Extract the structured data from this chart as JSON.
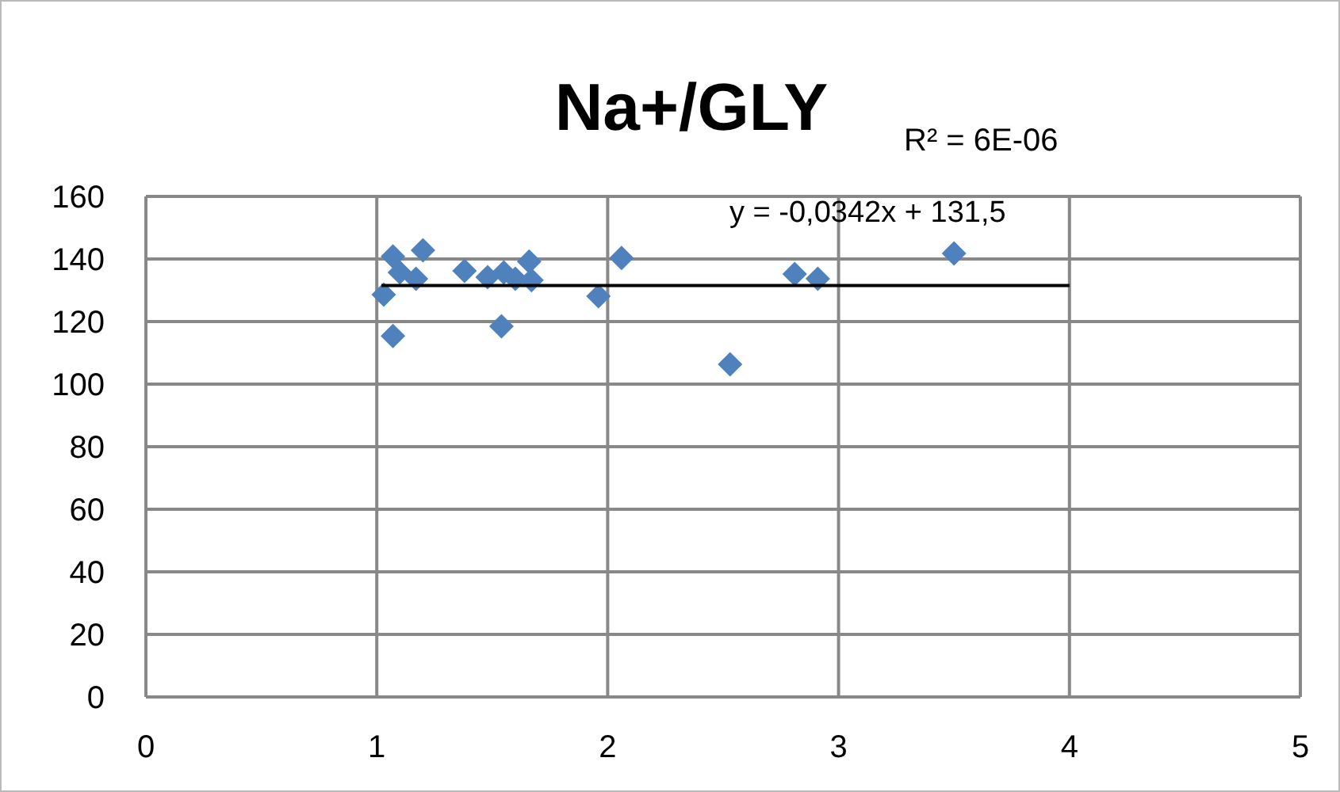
{
  "chart_data": {
    "type": "scatter",
    "title": "Na+/GLY",
    "annotations": [
      "R² = 6E-06",
      "y = -0,0342x + 131,5"
    ],
    "xlim": [
      0,
      5
    ],
    "xticks": [
      0,
      1,
      2,
      3,
      4,
      5
    ],
    "ylim": [
      0,
      160
    ],
    "yticks": [
      0,
      20,
      40,
      60,
      80,
      100,
      120,
      140,
      160
    ],
    "grid": true,
    "marker": "diamond",
    "series": [
      {
        "color": "#4f81bd",
        "x": [
          1.03,
          1.07,
          1.07,
          1.1,
          1.17,
          1.2,
          1.38,
          1.48,
          1.54,
          1.55,
          1.6,
          1.66,
          1.67,
          1.96,
          2.06,
          2.53,
          2.81,
          2.91,
          3.5
        ],
        "values": [
          128.6,
          140.8,
          115.4,
          135.7,
          133.7,
          142.8,
          136.2,
          134.2,
          118.5,
          135.7,
          133.7,
          139.2,
          133.2,
          128.1,
          140.3,
          106.3,
          135.2,
          133.7,
          141.8
        ]
      },
      {
        "type": "line",
        "color": "#000000",
        "x": [
          1.02,
          4
        ],
        "values": [
          131.5,
          131.5
        ],
        "marker": "none",
        "line_style": "solid"
      }
    ]
  }
}
